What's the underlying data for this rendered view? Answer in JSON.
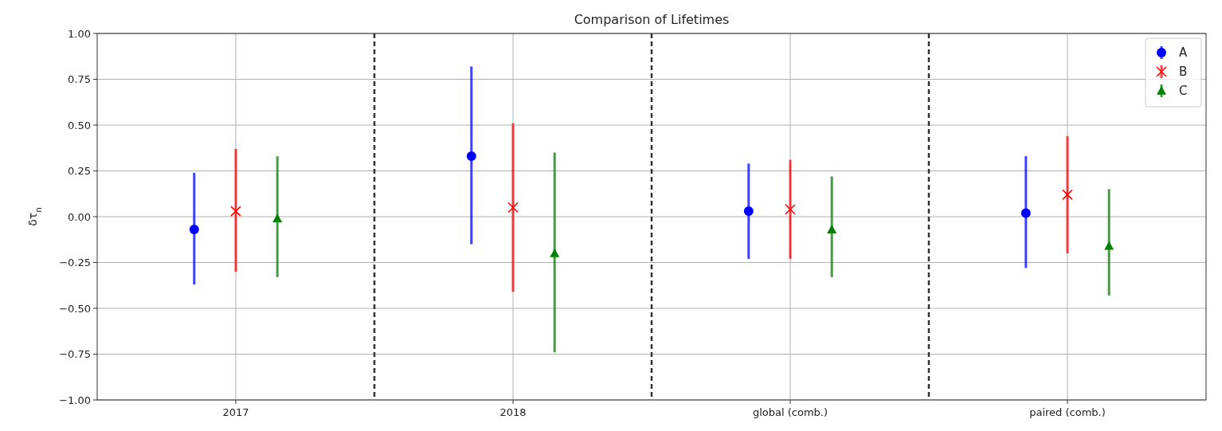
{
  "chart_data": {
    "type": "scatter",
    "title": "Comparison of Lifetimes",
    "ylabel": "δτ$_{n}$",
    "categories": [
      "2017",
      "2018",
      "global (comb.)",
      "paired (comb.)"
    ],
    "ylim": [
      -1,
      1
    ],
    "yticks": [
      {
        "value": -1,
        "label": "−1.00"
      },
      {
        "value": -0.75,
        "label": "−0.75"
      },
      {
        "value": -0.5,
        "label": "−0.50"
      },
      {
        "value": -0.25,
        "label": "−0.25"
      },
      {
        "value": 0,
        "label": "0.00"
      },
      {
        "value": 0.25,
        "label": "0.25"
      },
      {
        "value": 0.5,
        "label": "0.50"
      },
      {
        "value": 0.75,
        "label": "0.75"
      },
      {
        "value": 1,
        "label": "1.00"
      }
    ],
    "grid": true,
    "legend": "top right",
    "series": [
      {
        "name": "A",
        "color": "#0000ff",
        "marker": "circle",
        "values": [
          -0.07,
          0.33,
          0.03,
          0.02
        ],
        "errors": [
          [
            -0.37,
            0.24
          ],
          [
            -0.15,
            0.82
          ],
          [
            -0.23,
            0.29
          ],
          [
            -0.28,
            0.33
          ]
        ]
      },
      {
        "name": "B",
        "color": "#ff0000",
        "marker": "cross",
        "values": [
          0.03,
          0.05,
          0.04,
          0.12
        ],
        "errors": [
          [
            -0.3,
            0.37
          ],
          [
            -0.41,
            0.51
          ],
          [
            -0.23,
            0.31
          ],
          [
            -0.2,
            0.44
          ]
        ]
      },
      {
        "name": "C",
        "color": "#008000",
        "marker": "triangle",
        "values": [
          -0.01,
          -0.2,
          -0.07,
          -0.16
        ],
        "errors": [
          [
            -0.33,
            0.33
          ],
          [
            -0.74,
            0.35
          ],
          [
            -0.33,
            0.22
          ],
          [
            -0.43,
            0.15
          ]
        ]
      }
    ]
  }
}
